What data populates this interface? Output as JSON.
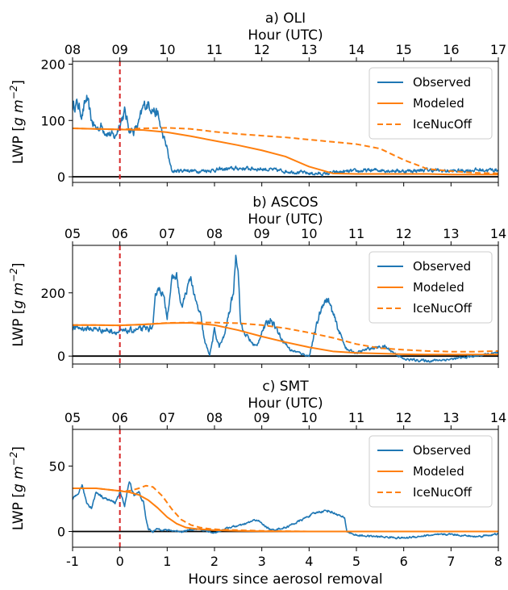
{
  "chart_data": [
    {
      "type": "line",
      "title": "a) OLI",
      "top_xlabel": "Hour (UTC)",
      "top_ticks": [
        "08",
        "09",
        "10",
        "11",
        "12",
        "13",
        "14",
        "15",
        "16",
        "17"
      ],
      "ylabel": "LWP [g m⁻²]",
      "ylabel_parts": [
        "LWP [",
        "g m",
        "−2",
        "]"
      ],
      "ylim": [
        -10,
        205
      ],
      "yticks": [
        0,
        100,
        200
      ],
      "xlim": [
        -1,
        8
      ],
      "legend_position": "upper-right",
      "series": [
        {
          "name": "Observed",
          "color": "#1f77b4",
          "style": "solid",
          "noise": 12,
          "x": [
            -1,
            -0.9,
            -0.8,
            -0.7,
            -0.6,
            -0.5,
            -0.4,
            -0.3,
            -0.2,
            -0.1,
            0,
            0.1,
            0.2,
            0.3,
            0.4,
            0.5,
            0.6,
            0.7,
            0.8,
            0.9,
            1,
            1.05,
            1.1,
            1.2,
            1.4,
            1.6,
            2,
            2.5,
            3,
            3.5,
            3.8,
            4,
            4.3,
            4.6,
            5,
            5.5,
            6,
            6.5,
            7,
            7.5,
            8
          ],
          "y": [
            125,
            130,
            110,
            140,
            100,
            85,
            90,
            80,
            75,
            70,
            95,
            115,
            85,
            80,
            95,
            125,
            130,
            120,
            110,
            75,
            50,
            25,
            10,
            10,
            12,
            10,
            12,
            15,
            14,
            10,
            8,
            6,
            5,
            8,
            10,
            12,
            10,
            12,
            10,
            12,
            12
          ]
        },
        {
          "name": "Modeled",
          "color": "#ff7f0e",
          "style": "solid",
          "x": [
            -1,
            -0.5,
            0,
            0.5,
            1,
            1.5,
            2,
            2.5,
            3,
            3.5,
            4,
            4.5,
            5,
            5.5,
            6,
            6.5,
            7,
            7.5,
            8
          ],
          "y": [
            86,
            85,
            84,
            83,
            79,
            72,
            64,
            56,
            47,
            36,
            18,
            6,
            5,
            5,
            5,
            5,
            4,
            4,
            4
          ]
        },
        {
          "name": "IceNucOff",
          "color": "#ff7f0e",
          "style": "dashed",
          "x": [
            -1,
            -0.5,
            0,
            0.5,
            1,
            1.5,
            2,
            2.5,
            3,
            3.5,
            4,
            4.5,
            5,
            5.5,
            6,
            6.5,
            7,
            7.5,
            8
          ],
          "y": [
            86,
            85,
            84,
            86,
            87,
            85,
            80,
            76,
            73,
            70,
            66,
            62,
            58,
            50,
            30,
            14,
            10,
            7,
            6
          ]
        }
      ]
    },
    {
      "type": "line",
      "title": "b) ASCOS",
      "top_xlabel": "Hour (UTC)",
      "top_ticks": [
        "05",
        "06",
        "07",
        "08",
        "09",
        "10",
        "11",
        "12",
        "13",
        "14"
      ],
      "ylabel": "LWP [g m⁻²]",
      "ylabel_parts": [
        "LWP [",
        "g m",
        "−2",
        "]"
      ],
      "ylim": [
        -25,
        350
      ],
      "yticks": [
        0,
        200
      ],
      "xlim": [
        -1,
        8
      ],
      "legend_position": "upper-right",
      "series": [
        {
          "name": "Observed",
          "color": "#1f77b4",
          "style": "solid",
          "noise": 14,
          "x": [
            -1,
            -0.5,
            -0.2,
            0,
            0.2,
            0.5,
            0.7,
            0.75,
            0.8,
            0.9,
            1,
            1.1,
            1.2,
            1.3,
            1.4,
            1.5,
            1.6,
            1.7,
            1.8,
            1.9,
            2,
            2.1,
            2.2,
            2.3,
            2.4,
            2.45,
            2.5,
            2.55,
            2.6,
            2.7,
            2.8,
            2.9,
            3,
            3.2,
            3.4,
            3.6,
            3.8,
            4,
            4.2,
            4.3,
            4.4,
            4.6,
            4.8,
            5,
            5.3,
            5.6,
            6,
            6.5,
            7,
            7.5,
            8
          ],
          "y": [
            90,
            85,
            80,
            75,
            80,
            85,
            90,
            180,
            220,
            200,
            130,
            240,
            255,
            150,
            200,
            250,
            170,
            130,
            40,
            5,
            80,
            30,
            60,
            130,
            200,
            320,
            280,
            110,
            80,
            60,
            40,
            30,
            80,
            120,
            60,
            20,
            10,
            0,
            120,
            170,
            180,
            90,
            20,
            10,
            25,
            30,
            -10,
            -15,
            -10,
            0,
            10
          ]
        },
        {
          "name": "Modeled",
          "color": "#ff7f0e",
          "style": "solid",
          "x": [
            -1,
            -0.5,
            0,
            0.5,
            1,
            1.5,
            2,
            2.5,
            3,
            3.5,
            4,
            4.5,
            5,
            5.5,
            6,
            6.5,
            7,
            7.5,
            8
          ],
          "y": [
            98,
            98,
            97,
            100,
            104,
            105,
            98,
            82,
            62,
            44,
            28,
            15,
            10,
            8,
            6,
            5,
            5,
            5,
            5
          ]
        },
        {
          "name": "IceNucOff",
          "color": "#ff7f0e",
          "style": "dashed",
          "x": [
            -1,
            -0.5,
            0,
            0.5,
            1,
            1.5,
            2,
            2.5,
            3,
            3.5,
            4,
            4.5,
            5,
            5.5,
            6,
            6.5,
            7,
            7.5,
            8
          ],
          "y": [
            98,
            98,
            97,
            100,
            105,
            106,
            106,
            104,
            98,
            88,
            74,
            58,
            38,
            25,
            20,
            16,
            14,
            14,
            16
          ]
        }
      ]
    },
    {
      "type": "line",
      "title": "c) SMT",
      "top_xlabel": "Hour (UTC)",
      "top_ticks": [
        "05",
        "06",
        "07",
        "08",
        "09",
        "10",
        "11",
        "12",
        "13",
        "14"
      ],
      "ylabel": "LWP [g m⁻²]",
      "ylabel_parts": [
        "LWP [",
        "g m",
        "−2",
        "]"
      ],
      "ylim": [
        -12,
        78
      ],
      "yticks": [
        0,
        50
      ],
      "xlim": [
        -1,
        8
      ],
      "xlabel": "Hours since aerosol removal",
      "xtick_labels": [
        "-1",
        "0",
        "1",
        "2",
        "3",
        "4",
        "5",
        "6",
        "7",
        "8"
      ],
      "legend_position": "upper-right",
      "series": [
        {
          "name": "Observed",
          "color": "#1f77b4",
          "style": "solid",
          "noise": 3,
          "x": [
            -1,
            -0.9,
            -0.8,
            -0.7,
            -0.6,
            -0.5,
            -0.3,
            -0.1,
            0,
            0.1,
            0.2,
            0.3,
            0.4,
            0.5,
            0.55,
            0.6,
            0.7,
            0.8,
            1,
            1.3,
            1.6,
            2,
            2.3,
            2.6,
            2.8,
            2.9,
            3,
            3.2,
            3.5,
            3.8,
            4,
            4.2,
            4.4,
            4.6,
            4.75,
            4.8,
            5,
            5.5,
            6,
            6.5,
            7,
            7.5,
            8
          ],
          "y": [
            24,
            28,
            35,
            22,
            18,
            30,
            25,
            22,
            30,
            20,
            38,
            28,
            30,
            22,
            10,
            2,
            0,
            2,
            1,
            0,
            2,
            -1,
            3,
            5,
            8,
            9,
            6,
            1,
            3,
            8,
            12,
            15,
            16,
            13,
            10,
            0,
            -3,
            -4,
            -5,
            -3,
            -2,
            -4,
            -2
          ]
        },
        {
          "name": "Modeled",
          "color": "#ff7f0e",
          "style": "solid",
          "x": [
            -1,
            -0.5,
            0,
            0.2,
            0.4,
            0.6,
            0.8,
            1,
            1.2,
            1.4,
            1.6,
            1.8,
            2,
            2.5,
            3,
            4,
            5,
            6,
            7,
            8
          ],
          "y": [
            33,
            33,
            31,
            30,
            28,
            24,
            18,
            11,
            6,
            3,
            2,
            1.5,
            1,
            0.5,
            0.2,
            0,
            0,
            0,
            0,
            0
          ]
        },
        {
          "name": "IceNucOff",
          "color": "#ff7f0e",
          "style": "dashed",
          "x": [
            -1,
            -0.5,
            0,
            0.2,
            0.4,
            0.55,
            0.7,
            0.9,
            1.1,
            1.3,
            1.5,
            1.7,
            1.9,
            2.1,
            2.5,
            3,
            4,
            5,
            6,
            7,
            8
          ],
          "y": [
            33,
            33,
            31,
            31,
            33,
            35,
            34,
            27,
            17,
            9,
            5,
            3,
            2,
            1.5,
            1,
            0.5,
            0,
            0,
            0,
            0,
            0
          ]
        }
      ]
    }
  ]
}
